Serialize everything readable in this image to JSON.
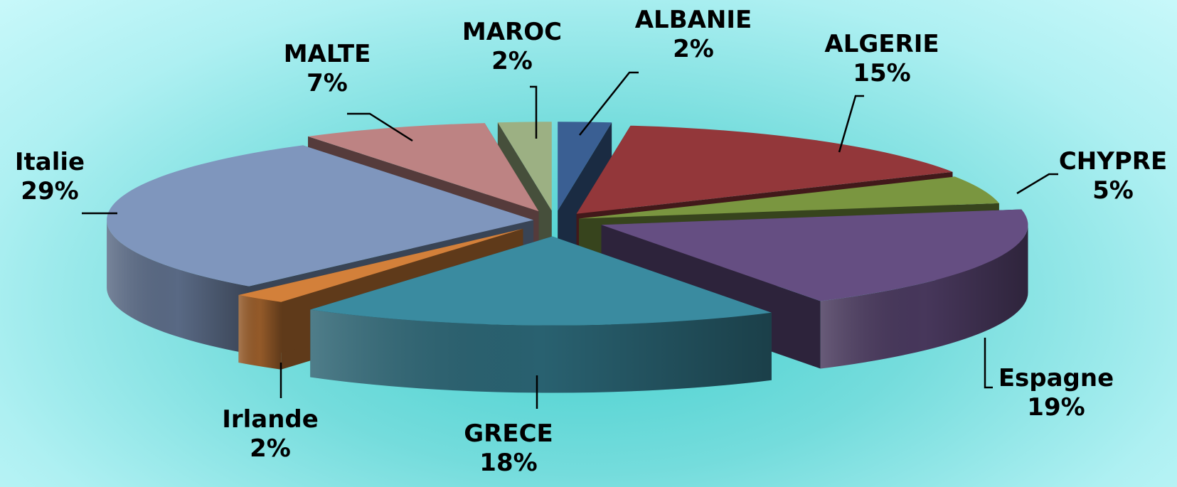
{
  "chart_data": {
    "type": "pie",
    "style": "3d-exploded",
    "legend": "none",
    "slices": [
      {
        "label": "ALBANIE",
        "pct": "2%",
        "value": 2,
        "color": "#3a5f93"
      },
      {
        "label": "ALGERIE",
        "pct": "15%",
        "value": 15,
        "color": "#93373a"
      },
      {
        "label": "CHYPRE",
        "pct": "5%",
        "value": 5,
        "color": "#7a9640"
      },
      {
        "label": "Espagne",
        "pct": "19%",
        "value": 19,
        "color": "#654e82"
      },
      {
        "label": "GRECE",
        "pct": "18%",
        "value": 18,
        "color": "#3a8ba0"
      },
      {
        "label": "Irlande",
        "pct": "2%",
        "value": 2,
        "color": "#d3803a"
      },
      {
        "label": "Italie",
        "pct": "29%",
        "value": 29,
        "color": "#7f96bd"
      },
      {
        "label": "MALTE",
        "pct": "7%",
        "value": 7,
        "color": "#bd8383"
      },
      {
        "label": "MAROC",
        "pct": "2%",
        "value": 2,
        "color": "#9cb083"
      }
    ]
  }
}
